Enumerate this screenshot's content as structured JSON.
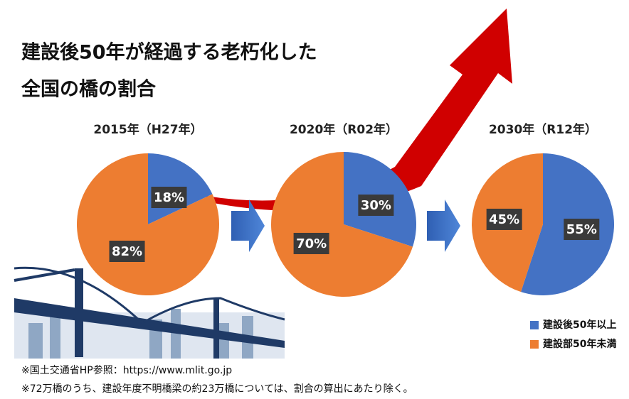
{
  "title": [
    "建設後50年が経過する老朽化した",
    "全国の橋の割合"
  ],
  "legend": [
    {
      "name": "建設後50年以上",
      "color": "#4472c4"
    },
    {
      "name": "建設部50年未満",
      "color": "#ed7d31"
    }
  ],
  "chart_data": [
    {
      "type": "pie",
      "title": "2015年（H27年）",
      "values": [
        18,
        82
      ],
      "value_labels": [
        "18%",
        "82%"
      ]
    },
    {
      "type": "pie",
      "title": "2020年（R02年）",
      "values": [
        30,
        70
      ],
      "value_labels": [
        "30%",
        "70%"
      ]
    },
    {
      "type": "pie",
      "title": "2030年（R12年）",
      "values": [
        55,
        45
      ],
      "value_labels": [
        "55%",
        "45%"
      ]
    }
  ],
  "notes": [
    "※国土交通省HP参照：https://www.mlit.go.jp",
    "※72万橋のうち、建設年度不明橋梁の約23万橋については、割合の算出にあたり除く。"
  ]
}
